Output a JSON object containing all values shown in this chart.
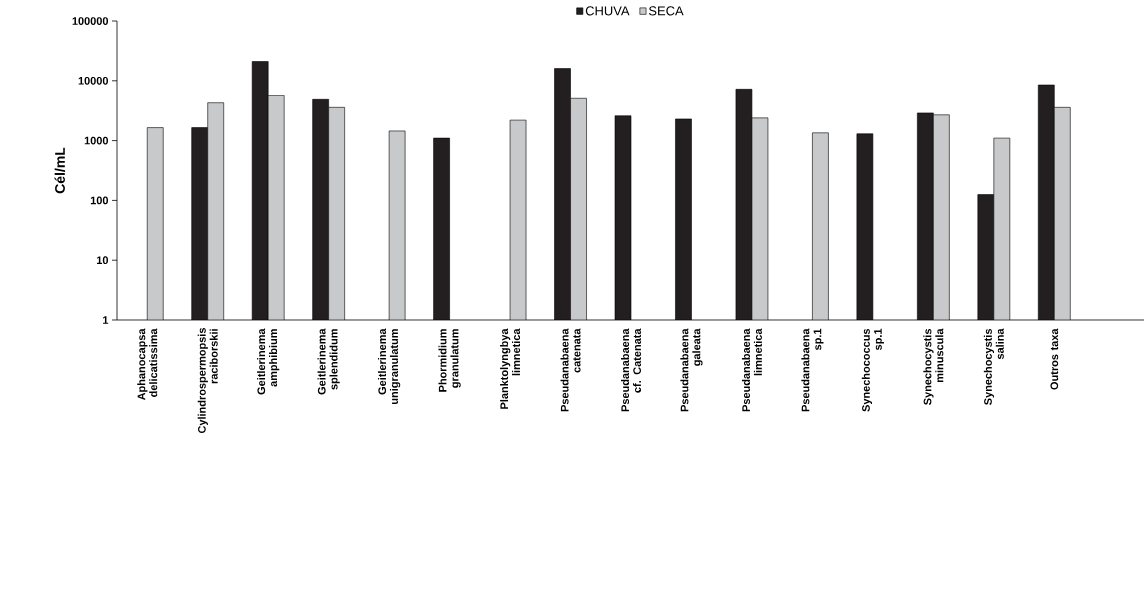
{
  "chart_data": {
    "type": "bar",
    "ylabel": "Cél/mL",
    "categories": [
      "Aphanocapsa  delicatissima",
      "Cylindrospermopsis raciborskii",
      "Geitlerinema  amphibium",
      "Geitlerinema  splendidum",
      "Geitlerinema  unigranulatum",
      "Phormidium  granulatum",
      "Planktolyngbya  limnetica",
      "Pseudanabaena  catenata",
      "Pseudanabaena  cf. Catenata",
      "Pseudanabaena  galeata",
      "Pseudanabaena  limnetica",
      "Pseudanabaena  sp.1",
      "Synechococcus  sp.1",
      "Synechocystis  minuscula",
      "Synechocystis  salina",
      "Outros taxa",
      null
    ],
    "series": [
      {
        "name": "CHUVA",
        "color": "#231f20",
        "values": [
          null,
          1650,
          21000,
          4900,
          null,
          1100,
          null,
          16000,
          2600,
          2300,
          7200,
          null,
          1300,
          2900,
          125,
          8500,
          null
        ]
      },
      {
        "name": "SECA",
        "color": "#c8c9cb",
        "values": [
          1650,
          4300,
          5700,
          3600,
          1450,
          null,
          2200,
          5100,
          null,
          null,
          2400,
          1350,
          null,
          2700,
          1100,
          3600,
          null
        ]
      }
    ],
    "log": "y",
    "ylim": [
      1,
      100000
    ],
    "yticks": [
      1,
      10,
      100,
      1000,
      10000,
      100000
    ],
    "legend": "top",
    "grid": false
  }
}
